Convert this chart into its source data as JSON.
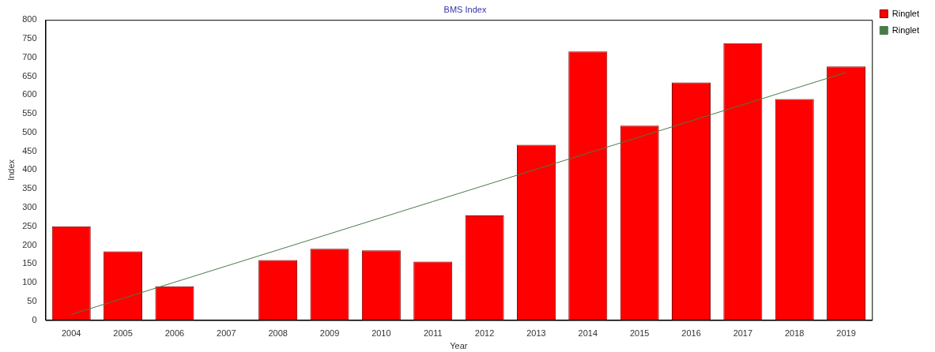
{
  "chart_data": {
    "type": "bar",
    "title": "BMS Index",
    "xlabel": "Year",
    "ylabel": "Index",
    "categories": [
      "2004",
      "2005",
      "2006",
      "2007",
      "2008",
      "2009",
      "2010",
      "2011",
      "2012",
      "2013",
      "2014",
      "2015",
      "2016",
      "2017",
      "2018",
      "2019"
    ],
    "series": [
      {
        "name": "Ringlet",
        "color": "#ff0000",
        "values": [
          250,
          183,
          90,
          null,
          160,
          190,
          186,
          156,
          279,
          467,
          716,
          518,
          633,
          738,
          589,
          676
        ]
      },
      {
        "name": "Ringlet",
        "type": "line",
        "color": "#4a7a4a",
        "values": [
          15,
          58,
          101,
          144,
          187,
          230,
          273,
          316,
          359,
          402,
          445,
          488,
          531,
          574,
          617,
          660
        ]
      }
    ],
    "ylim": [
      0,
      800
    ],
    "yticks": [
      0,
      50,
      100,
      150,
      200,
      250,
      300,
      350,
      400,
      450,
      500,
      550,
      600,
      650,
      700,
      750,
      800
    ],
    "grid": false,
    "legend": "top right",
    "marker": "none"
  }
}
